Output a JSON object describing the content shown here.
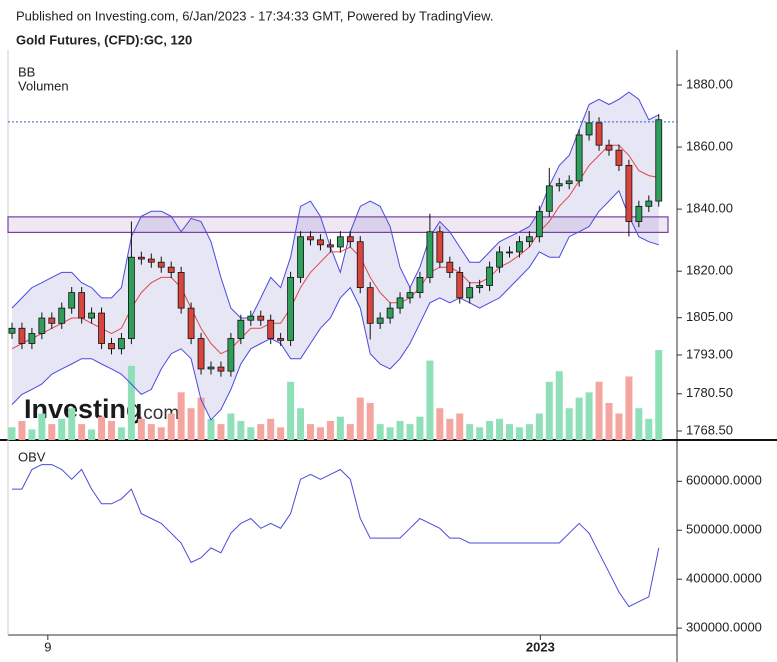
{
  "header": {
    "published": "Published on Investing.com, 6/Jan/2023 - 17:34:33 GMT, Powered by TradingView.",
    "symbol": "Gold Futures, (CFD):GC, 120"
  },
  "chart_data": [
    {
      "type": "candlestick",
      "legend": [
        "BB",
        "Volumen"
      ],
      "watermark": {
        "brand": "Investing",
        "suffix": ".com"
      },
      "open": [
        1800.0,
        1801.6,
        1796.7,
        1799.9,
        1804.9,
        1803.2,
        1808.1,
        1813.1,
        1804.9,
        1806.5,
        1796.7,
        1795.0,
        1798.3,
        1824.5,
        1823.9,
        1822.9,
        1821.3,
        1819.6,
        1808.1,
        1798.3,
        1788.5,
        1789.1,
        1787.8,
        1798.3,
        1804.2,
        1805.5,
        1804.2,
        1798.3,
        1797.7,
        1818.0,
        1831.1,
        1830.1,
        1828.5,
        1827.8,
        1831.1,
        1829.5,
        1814.7,
        1803.2,
        1804.9,
        1808.1,
        1811.4,
        1813.1,
        1818.0,
        1832.7,
        1822.9,
        1819.6,
        1811.4,
        1814.7,
        1815.4,
        1821.3,
        1826.2,
        1826.2,
        1829.5,
        1831.1,
        1839.3,
        1847.5,
        1848.2,
        1849.1,
        1863.9,
        1867.8,
        1860.6,
        1859.0,
        1854.1,
        1836.0,
        1840.9,
        1842.6
      ],
      "high": [
        1803.4,
        1803.4,
        1801.7,
        1806.7,
        1806.7,
        1809.9,
        1814.9,
        1814.9,
        1808.3,
        1808.3,
        1798.5,
        1800.1,
        1836.0,
        1826.3,
        1825.7,
        1824.7,
        1823.1,
        1821.4,
        1809.9,
        1800.1,
        1790.9,
        1790.9,
        1800.1,
        1806.0,
        1807.3,
        1807.3,
        1806.0,
        1800.1,
        1819.8,
        1832.9,
        1832.9,
        1831.9,
        1830.3,
        1832.9,
        1832.9,
        1831.3,
        1816.5,
        1806.7,
        1809.9,
        1813.2,
        1814.9,
        1819.8,
        1838.5,
        1834.5,
        1824.7,
        1821.4,
        1816.5,
        1817.2,
        1823.1,
        1828.0,
        1828.0,
        1831.3,
        1832.9,
        1841.1,
        1853.3,
        1850.0,
        1850.9,
        1865.7,
        1871.6,
        1869.6,
        1862.4,
        1860.8,
        1855.9,
        1842.7,
        1844.4,
        1870.6
      ],
      "low": [
        1798.2,
        1794.9,
        1794.9,
        1798.1,
        1801.4,
        1801.4,
        1806.3,
        1803.1,
        1803.1,
        1794.9,
        1793.2,
        1793.2,
        1796.5,
        1822.1,
        1821.1,
        1819.5,
        1817.8,
        1806.3,
        1796.5,
        1786.7,
        1786.7,
        1786.0,
        1786.0,
        1796.5,
        1802.4,
        1802.4,
        1796.5,
        1795.9,
        1795.9,
        1816.2,
        1828.3,
        1826.7,
        1826.0,
        1826.0,
        1827.7,
        1812.9,
        1798.0,
        1801.4,
        1803.1,
        1806.3,
        1809.6,
        1811.3,
        1816.2,
        1821.1,
        1817.8,
        1809.6,
        1809.6,
        1812.9,
        1813.6,
        1819.5,
        1824.4,
        1824.4,
        1827.7,
        1829.3,
        1837.5,
        1845.7,
        1846.4,
        1847.3,
        1862.1,
        1858.8,
        1857.2,
        1852.3,
        1831.2,
        1834.2,
        1839.1,
        1840.8
      ],
      "close": [
        1801.6,
        1796.7,
        1799.9,
        1804.9,
        1803.2,
        1808.1,
        1813.1,
        1804.9,
        1806.5,
        1796.7,
        1795.0,
        1798.3,
        1824.5,
        1823.9,
        1822.9,
        1821.3,
        1819.6,
        1808.1,
        1798.3,
        1788.5,
        1789.1,
        1787.8,
        1798.3,
        1804.2,
        1805.5,
        1804.2,
        1798.3,
        1797.7,
        1818.0,
        1831.1,
        1830.1,
        1828.5,
        1827.8,
        1831.1,
        1829.5,
        1814.7,
        1803.2,
        1804.9,
        1808.1,
        1811.4,
        1813.1,
        1818.0,
        1832.7,
        1822.9,
        1819.6,
        1811.4,
        1814.7,
        1815.4,
        1821.3,
        1826.2,
        1826.2,
        1829.5,
        1831.1,
        1839.3,
        1847.5,
        1848.2,
        1849.1,
        1863.9,
        1867.8,
        1860.6,
        1859.0,
        1854.1,
        1836.0,
        1840.9,
        1842.6,
        1868.8
      ],
      "up_color": "#2e9e5a",
      "down_color": "#d9453d",
      "bollinger": {
        "upper": [
          1808.1,
          1811.4,
          1814.7,
          1816.3,
          1818.0,
          1819.6,
          1819.6,
          1816.3,
          1814.7,
          1811.4,
          1811.4,
          1814.7,
          1831.1,
          1837.7,
          1839.3,
          1839.3,
          1837.7,
          1832.7,
          1837.0,
          1836.0,
          1829.5,
          1818.0,
          1808.1,
          1804.9,
          1804.9,
          1811.4,
          1818.0,
          1814.7,
          1824.5,
          1840.9,
          1842.6,
          1837.7,
          1827.8,
          1819.6,
          1832.7,
          1840.9,
          1842.6,
          1840.9,
          1834.4,
          1821.3,
          1814.7,
          1821.3,
          1831.1,
          1836.0,
          1832.7,
          1827.8,
          1822.9,
          1822.9,
          1826.2,
          1829.5,
          1831.1,
          1832.7,
          1834.4,
          1839.3,
          1847.5,
          1854.1,
          1857.3,
          1865.5,
          1873.7,
          1875.4,
          1873.7,
          1875.4,
          1877.7,
          1875.4,
          1868.8,
          1870.4
        ],
        "middle": [
          1795.0,
          1796.7,
          1798.3,
          1799.9,
          1801.6,
          1803.2,
          1804.9,
          1804.9,
          1803.2,
          1801.6,
          1799.9,
          1801.6,
          1808.1,
          1813.1,
          1816.3,
          1818.0,
          1818.0,
          1814.7,
          1808.1,
          1801.6,
          1796.7,
          1793.4,
          1795.0,
          1798.3,
          1801.6,
          1801.6,
          1803.2,
          1803.2,
          1808.1,
          1814.7,
          1819.6,
          1822.9,
          1826.2,
          1826.2,
          1827.8,
          1824.5,
          1818.0,
          1813.1,
          1809.8,
          1809.8,
          1811.4,
          1814.7,
          1819.6,
          1821.3,
          1821.3,
          1819.6,
          1816.3,
          1816.3,
          1818.0,
          1821.3,
          1822.9,
          1825.2,
          1827.8,
          1832.7,
          1836.0,
          1840.9,
          1844.2,
          1849.1,
          1854.1,
          1857.3,
          1860.6,
          1860.6,
          1857.3,
          1852.4,
          1850.8,
          1850.2
        ],
        "lower": [
          1777.0,
          1780.3,
          1781.9,
          1783.6,
          1786.8,
          1788.5,
          1790.1,
          1791.8,
          1791.8,
          1790.1,
          1788.5,
          1786.8,
          1783.6,
          1780.3,
          1781.9,
          1788.5,
          1793.4,
          1795.0,
          1791.8,
          1778.6,
          1772.1,
          1775.4,
          1781.9,
          1790.1,
          1795.0,
          1796.7,
          1798.3,
          1796.7,
          1791.8,
          1791.8,
          1796.7,
          1801.6,
          1804.9,
          1811.4,
          1814.7,
          1808.1,
          1793.4,
          1790.1,
          1788.5,
          1791.8,
          1796.7,
          1803.2,
          1809.8,
          1811.4,
          1809.8,
          1811.4,
          1809.8,
          1808.1,
          1809.8,
          1811.4,
          1814.7,
          1818.0,
          1821.3,
          1826.2,
          1824.5,
          1824.5,
          1831.1,
          1832.7,
          1834.4,
          1839.3,
          1842.6,
          1845.9,
          1837.7,
          1831.1,
          1829.5,
          1828.5
        ],
        "band_color": "#4a4ae0",
        "middle_color": "#e04848",
        "fill": "#e2e2f3"
      },
      "volume": {
        "values": [
          12,
          18,
          10,
          25,
          15,
          20,
          30,
          15,
          10,
          22,
          18,
          12,
          70,
          20,
          15,
          12,
          25,
          45,
          30,
          40,
          20,
          15,
          25,
          18,
          12,
          15,
          20,
          12,
          55,
          30,
          15,
          12,
          18,
          22,
          15,
          40,
          35,
          15,
          12,
          18,
          15,
          22,
          75,
          30,
          20,
          25,
          15,
          12,
          18,
          20,
          15,
          12,
          15,
          25,
          55,
          65,
          30,
          40,
          45,
          55,
          35,
          25,
          60,
          30,
          20,
          85
        ],
        "up_color": "#8fe0b8",
        "down_color": "#f4a5a0"
      },
      "band": [
        1832.5,
        1837.5
      ],
      "band_color": "#7a3fa0",
      "price_line": 1868.1,
      "price_line_color": "#3a5fd0",
      "ylim": [
        1765.6,
        1888.7
      ],
      "yticks": [
        {
          "value": 1880,
          "label": "1880.00"
        },
        {
          "value": 1860,
          "label": "1860.00"
        },
        {
          "value": 1840,
          "label": "1840.00"
        },
        {
          "value": 1820,
          "label": "1820.00"
        },
        {
          "value": 1805,
          "label": "1805.00"
        },
        {
          "value": 1793,
          "label": "1793.00"
        },
        {
          "value": 1780.5,
          "label": "1780.50"
        },
        {
          "value": 1768.5,
          "label": "1768.50"
        }
      ]
    },
    {
      "type": "line",
      "series": [
        {
          "name": "OBV",
          "color": "#4a4ae0",
          "values": [
            584000,
            584000,
            624000,
            634000,
            634000,
            624000,
            604000,
            624000,
            584000,
            554000,
            554000,
            564000,
            584000,
            534000,
            524000,
            514000,
            494000,
            474000,
            434000,
            444000,
            464000,
            454000,
            494000,
            514000,
            524000,
            504000,
            514000,
            504000,
            534000,
            604000,
            614000,
            604000,
            614000,
            624000,
            604000,
            524000,
            484000,
            484000,
            484000,
            484000,
            504000,
            524000,
            514000,
            504000,
            484000,
            484000,
            474000,
            474000,
            474000,
            474000,
            474000,
            474000,
            474000,
            474000,
            474000,
            474000,
            494000,
            514000,
            494000,
            454000,
            414000,
            374000,
            344000,
            354000,
            364000,
            464000
          ]
        }
      ],
      "ylim": [
        286000,
        668000
      ],
      "yticks": [
        {
          "value": 600000,
          "label": "600000.0000"
        },
        {
          "value": 500000,
          "label": "500000.0000"
        },
        {
          "value": 400000,
          "label": "400000.0000"
        },
        {
          "value": 300000,
          "label": "300000.0000"
        }
      ],
      "xticks": [
        {
          "value": 3.6,
          "label": "9"
        },
        {
          "value": 53.1,
          "label": "2023"
        }
      ]
    }
  ]
}
